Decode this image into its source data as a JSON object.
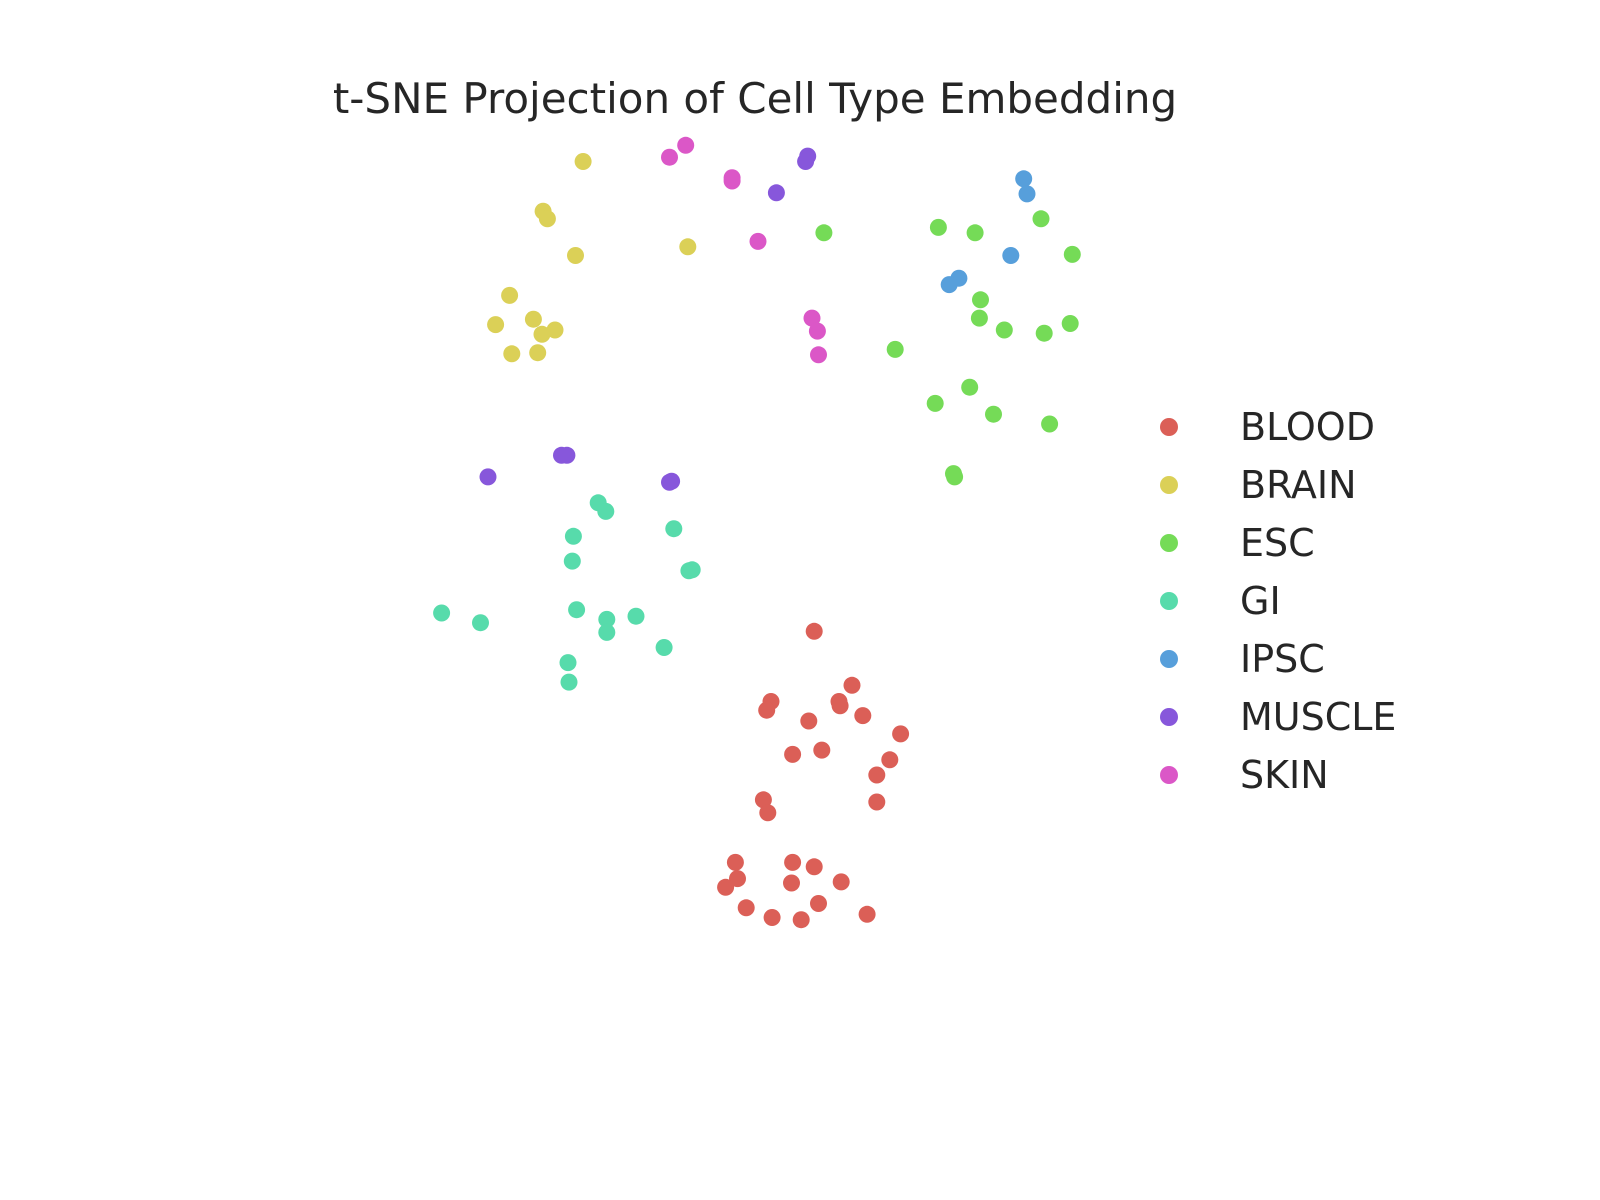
{
  "chart_data": {
    "type": "scatter",
    "title": "t-SNE Projection of Cell Type Embedding",
    "xlabel": "",
    "ylabel": "",
    "axes_visible": false,
    "grid": false,
    "legend_position": "right",
    "xlim": [
      0,
      100
    ],
    "ylim": [
      0,
      100
    ],
    "series": [
      {
        "name": "BLOOD",
        "color": "#db5f57",
        "points": [
          [
            61.5,
            47.1
          ],
          [
            65.0,
            42.1
          ],
          [
            57.5,
            40.6
          ],
          [
            57.1,
            39.8
          ],
          [
            61.0,
            38.8
          ],
          [
            63.8,
            40.6
          ],
          [
            63.9,
            40.2
          ],
          [
            66.0,
            39.3
          ],
          [
            69.5,
            37.6
          ],
          [
            59.5,
            35.7
          ],
          [
            62.2,
            36.1
          ],
          [
            68.5,
            35.2
          ],
          [
            67.3,
            33.8
          ],
          [
            56.8,
            31.5
          ],
          [
            57.2,
            30.3
          ],
          [
            67.3,
            31.3
          ],
          [
            54.2,
            25.7
          ],
          [
            59.5,
            25.7
          ],
          [
            61.5,
            25.3
          ],
          [
            64.0,
            23.9
          ],
          [
            54.4,
            24.2
          ],
          [
            53.3,
            23.4
          ],
          [
            59.4,
            23.8
          ],
          [
            61.9,
            21.9
          ],
          [
            55.2,
            21.5
          ],
          [
            57.6,
            20.6
          ],
          [
            60.3,
            20.4
          ],
          [
            66.4,
            20.9
          ]
        ]
      },
      {
        "name": "BRAIN",
        "color": "#dbd057",
        "points": [
          [
            40.1,
            90.6
          ],
          [
            36.4,
            86.0
          ],
          [
            36.8,
            85.3
          ],
          [
            39.4,
            81.9
          ],
          [
            49.8,
            82.7
          ],
          [
            33.3,
            78.2
          ],
          [
            32.0,
            75.5
          ],
          [
            35.5,
            76.0
          ],
          [
            36.3,
            74.6
          ],
          [
            37.5,
            75.0
          ],
          [
            33.5,
            72.8
          ],
          [
            35.9,
            72.9
          ]
        ]
      },
      {
        "name": "ESC",
        "color": "#75db57",
        "points": [
          [
            62.4,
            84.0
          ],
          [
            73.0,
            84.5
          ],
          [
            76.4,
            84.0
          ],
          [
            82.5,
            85.3
          ],
          [
            85.4,
            82.0
          ],
          [
            76.9,
            77.8
          ],
          [
            76.8,
            76.1
          ],
          [
            79.1,
            75.0
          ],
          [
            85.2,
            75.6
          ],
          [
            82.8,
            74.7
          ],
          [
            69.0,
            73.2
          ],
          [
            75.9,
            69.7
          ],
          [
            72.7,
            68.2
          ],
          [
            78.1,
            67.2
          ],
          [
            83.3,
            66.3
          ],
          [
            74.4,
            61.7
          ],
          [
            74.5,
            61.4
          ]
        ]
      },
      {
        "name": "GI",
        "color": "#57dbab",
        "points": [
          [
            41.5,
            59.0
          ],
          [
            42.2,
            58.2
          ],
          [
            48.5,
            56.6
          ],
          [
            39.2,
            55.9
          ],
          [
            39.1,
            53.6
          ],
          [
            49.9,
            52.7
          ],
          [
            50.2,
            52.8
          ],
          [
            27.0,
            48.8
          ],
          [
            30.6,
            47.9
          ],
          [
            39.5,
            49.1
          ],
          [
            42.3,
            48.2
          ],
          [
            45.0,
            48.5
          ],
          [
            42.3,
            47.0
          ],
          [
            47.6,
            45.6
          ],
          [
            38.7,
            44.2
          ],
          [
            38.8,
            42.4
          ]
        ]
      },
      {
        "name": "IPSC",
        "color": "#579fdb",
        "points": [
          [
            80.9,
            89.0
          ],
          [
            81.2,
            87.6
          ],
          [
            79.7,
            81.9
          ],
          [
            74.9,
            79.8
          ],
          [
            74.0,
            79.2
          ]
        ]
      },
      {
        "name": "MUSCLE",
        "color": "#8757db",
        "points": [
          [
            60.9,
            91.1
          ],
          [
            60.7,
            90.6
          ],
          [
            58.0,
            87.7
          ],
          [
            38.1,
            63.4
          ],
          [
            38.6,
            63.4
          ],
          [
            31.3,
            61.4
          ],
          [
            48.3,
            61.0
          ],
          [
            48.1,
            60.9
          ]
        ]
      },
      {
        "name": "SKIN",
        "color": "#db57c7",
        "points": [
          [
            49.6,
            92.1
          ],
          [
            48.1,
            91.0
          ],
          [
            53.9,
            89.1
          ],
          [
            53.9,
            88.8
          ],
          [
            56.3,
            83.2
          ],
          [
            61.3,
            76.1
          ],
          [
            61.8,
            74.9
          ],
          [
            61.9,
            72.7
          ]
        ]
      }
    ]
  }
}
